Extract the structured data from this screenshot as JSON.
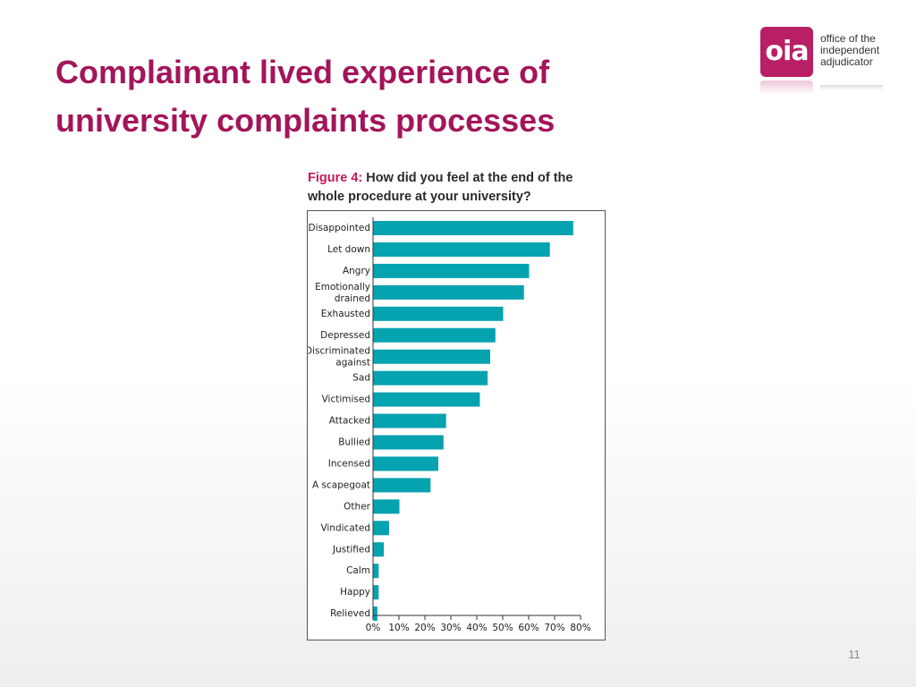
{
  "slide": {
    "title_line1": "Complainant lived experience of",
    "title_line2": "university complaints processes",
    "page_number": "11"
  },
  "logo": {
    "mark": "oia",
    "line1": "office of the",
    "line2": "independent",
    "line3": "adjudicator"
  },
  "figure": {
    "label": "Figure 4:",
    "question": "How did you feel at the end of the whole procedure at your university?"
  },
  "colors": {
    "title": "#a3155a",
    "bar": "#05a2b0",
    "brand": "#b81f64"
  },
  "chart_data": {
    "type": "bar",
    "orientation": "horizontal",
    "title": "Figure 4: How did you feel at the end of the whole procedure at your university?",
    "categories": [
      "Disappointed",
      "Let down",
      "Angry",
      "Emotionally drained",
      "Exhausted",
      "Depressed",
      "Discriminated against",
      "Sad",
      "Victimised",
      "Attacked",
      "Bullied",
      "Incensed",
      "A scapegoat",
      "Other",
      "Vindicated",
      "Justified",
      "Calm",
      "Happy",
      "Relieved"
    ],
    "category_lines": [
      [
        "Disappointed"
      ],
      [
        "Let down"
      ],
      [
        "Angry"
      ],
      [
        "Emotionally",
        "drained"
      ],
      [
        "Exhausted"
      ],
      [
        "Depressed"
      ],
      [
        "Discriminated",
        "against"
      ],
      [
        "Sad"
      ],
      [
        "Victimised"
      ],
      [
        "Attacked"
      ],
      [
        "Bullied"
      ],
      [
        "Incensed"
      ],
      [
        "A scapegoat"
      ],
      [
        "Other"
      ],
      [
        "Vindicated"
      ],
      [
        "Justified"
      ],
      [
        "Calm"
      ],
      [
        "Happy"
      ],
      [
        "Relieved"
      ]
    ],
    "values": [
      77,
      68,
      60,
      58,
      50,
      47,
      45,
      44,
      41,
      28,
      27,
      25,
      22,
      10,
      6,
      4,
      2,
      2,
      1.5
    ],
    "xlim": [
      0,
      80
    ],
    "xticks": [
      "0%",
      "10%",
      "20%",
      "30%",
      "40%",
      "50%",
      "60%",
      "70%",
      "80%"
    ],
    "xlabel": "",
    "ylabel": "",
    "grid": false,
    "legend": "none"
  }
}
